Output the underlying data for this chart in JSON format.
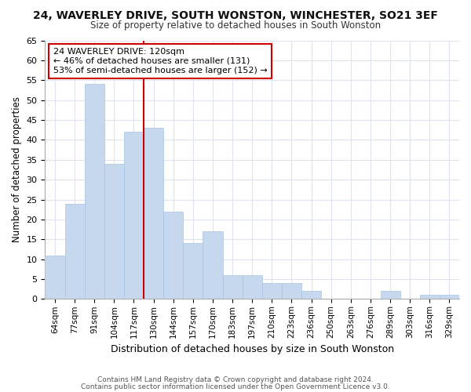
{
  "title1": "24, WAVERLEY DRIVE, SOUTH WONSTON, WINCHESTER, SO21 3EF",
  "title2": "Size of property relative to detached houses in South Wonston",
  "xlabel": "Distribution of detached houses by size in South Wonston",
  "ylabel": "Number of detached properties",
  "categories": [
    "64sqm",
    "77sqm",
    "91sqm",
    "104sqm",
    "117sqm",
    "130sqm",
    "144sqm",
    "157sqm",
    "170sqm",
    "183sqm",
    "197sqm",
    "210sqm",
    "223sqm",
    "236sqm",
    "250sqm",
    "263sqm",
    "276sqm",
    "289sqm",
    "303sqm",
    "316sqm",
    "329sqm"
  ],
  "values": [
    11,
    24,
    54,
    34,
    42,
    43,
    22,
    14,
    17,
    6,
    6,
    4,
    4,
    2,
    0,
    0,
    0,
    2,
    0,
    1,
    1
  ],
  "bar_color": "#c5d8ee",
  "bar_edge_color": "#a8c4e0",
  "vline_x": 4.5,
  "vline_color": "#cc0000",
  "annotation_title": "24 WAVERLEY DRIVE: 120sqm",
  "annotation_line1": "← 46% of detached houses are smaller (131)",
  "annotation_line2": "53% of semi-detached houses are larger (152) →",
  "annotation_box_color": "#cc0000",
  "ylim": [
    0,
    65
  ],
  "yticks": [
    0,
    5,
    10,
    15,
    20,
    25,
    30,
    35,
    40,
    45,
    50,
    55,
    60,
    65
  ],
  "footer1": "Contains HM Land Registry data © Crown copyright and database right 2024.",
  "footer2": "Contains public sector information licensed under the Open Government Licence v3.0.",
  "bg_color": "#ffffff",
  "plot_bg_color": "#ffffff",
  "grid_color": "#dde4f0"
}
